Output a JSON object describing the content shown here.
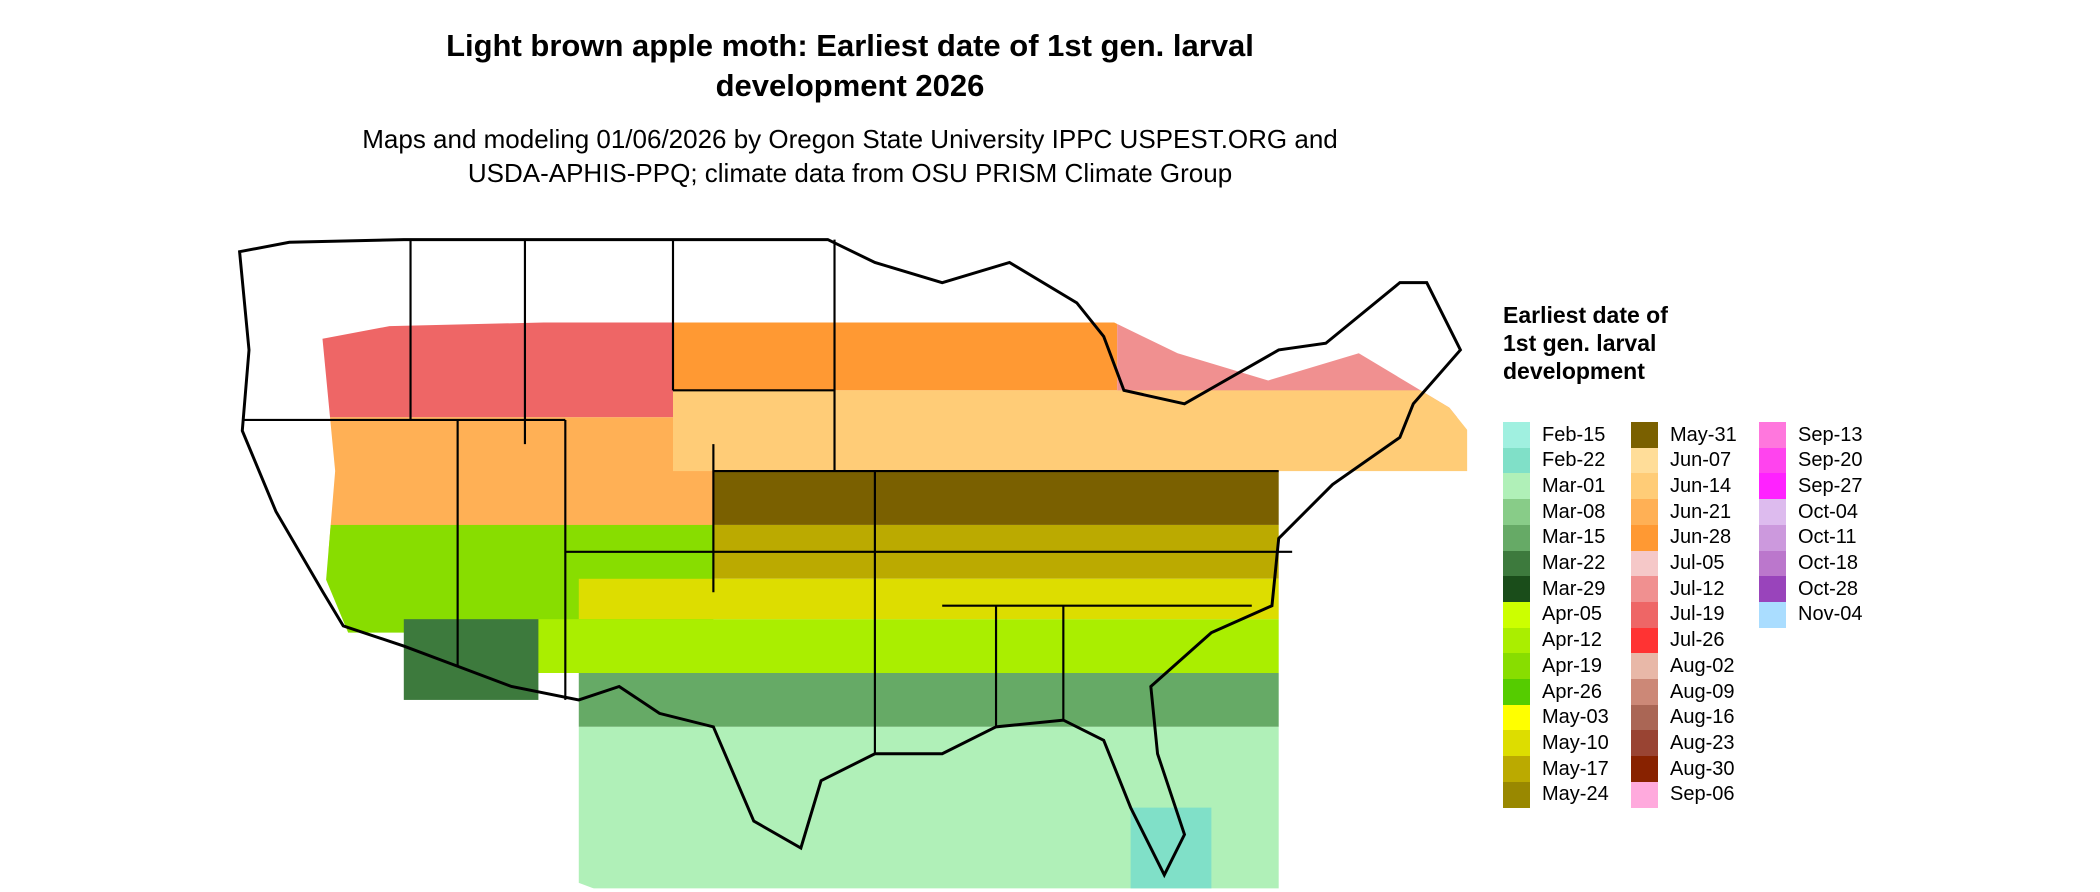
{
  "title": "Light brown apple moth: Earliest date of 1st gen. larval development 2026",
  "subtitle": "Maps and modeling 01/06/2026 by Oregon State University IPPC USPEST.ORG and USDA-APHIS-PPQ; climate data from OSU PRISM Climate Group",
  "legend": {
    "title": "Earliest date of 1st gen. larval development",
    "entries": [
      {
        "label": "Feb-15",
        "color": "#a0f0e0"
      },
      {
        "label": "Feb-22",
        "color": "#80e0c8"
      },
      {
        "label": "Mar-01",
        "color": "#b0f0b8"
      },
      {
        "label": "Mar-08",
        "color": "#88cc88"
      },
      {
        "label": "Mar-15",
        "color": "#66aa66"
      },
      {
        "label": "Mar-22",
        "color": "#3d7a3d"
      },
      {
        "label": "Mar-29",
        "color": "#1a4d1a"
      },
      {
        "label": "Apr-05",
        "color": "#ccff00"
      },
      {
        "label": "Apr-12",
        "color": "#aaee00"
      },
      {
        "label": "Apr-19",
        "color": "#88dd00"
      },
      {
        "label": "Apr-26",
        "color": "#55cc00"
      },
      {
        "label": "May-03",
        "color": "#ffff00"
      },
      {
        "label": "May-10",
        "color": "#dddd00"
      },
      {
        "label": "May-17",
        "color": "#bbaa00"
      },
      {
        "label": "May-24",
        "color": "#998800"
      },
      {
        "label": "May-31",
        "color": "#7a6000"
      },
      {
        "label": "Jun-07",
        "color": "#ffdd99"
      },
      {
        "label": "Jun-14",
        "color": "#ffcc77"
      },
      {
        "label": "Jun-21",
        "color": "#ffb055"
      },
      {
        "label": "Jun-28",
        "color": "#ff9933"
      },
      {
        "label": "Jul-05",
        "color": "#f5c8c8"
      },
      {
        "label": "Jul-12",
        "color": "#f09090"
      },
      {
        "label": "Jul-19",
        "color": "#ee6666"
      },
      {
        "label": "Jul-26",
        "color": "#ff3333"
      },
      {
        "label": "Aug-02",
        "color": "#e8b8a8"
      },
      {
        "label": "Aug-09",
        "color": "#cc8877"
      },
      {
        "label": "Aug-16",
        "color": "#aa6655"
      },
      {
        "label": "Aug-23",
        "color": "#994433"
      },
      {
        "label": "Aug-30",
        "color": "#882200"
      },
      {
        "label": "Sep-06",
        "color": "#ffaadd"
      },
      {
        "label": "Sep-13",
        "color": "#ff77dd"
      },
      {
        "label": "Sep-20",
        "color": "#ff44ee"
      },
      {
        "label": "Sep-27",
        "color": "#ff22ff"
      },
      {
        "label": "Oct-04",
        "color": "#ddbbee"
      },
      {
        "label": "Oct-11",
        "color": "#cc99dd"
      },
      {
        "label": "Oct-18",
        "color": "#bb77cc"
      },
      {
        "label": "Oct-28",
        "color": "#9944bb"
      },
      {
        "label": "Nov-04",
        "color": "#aaddff"
      }
    ]
  }
}
